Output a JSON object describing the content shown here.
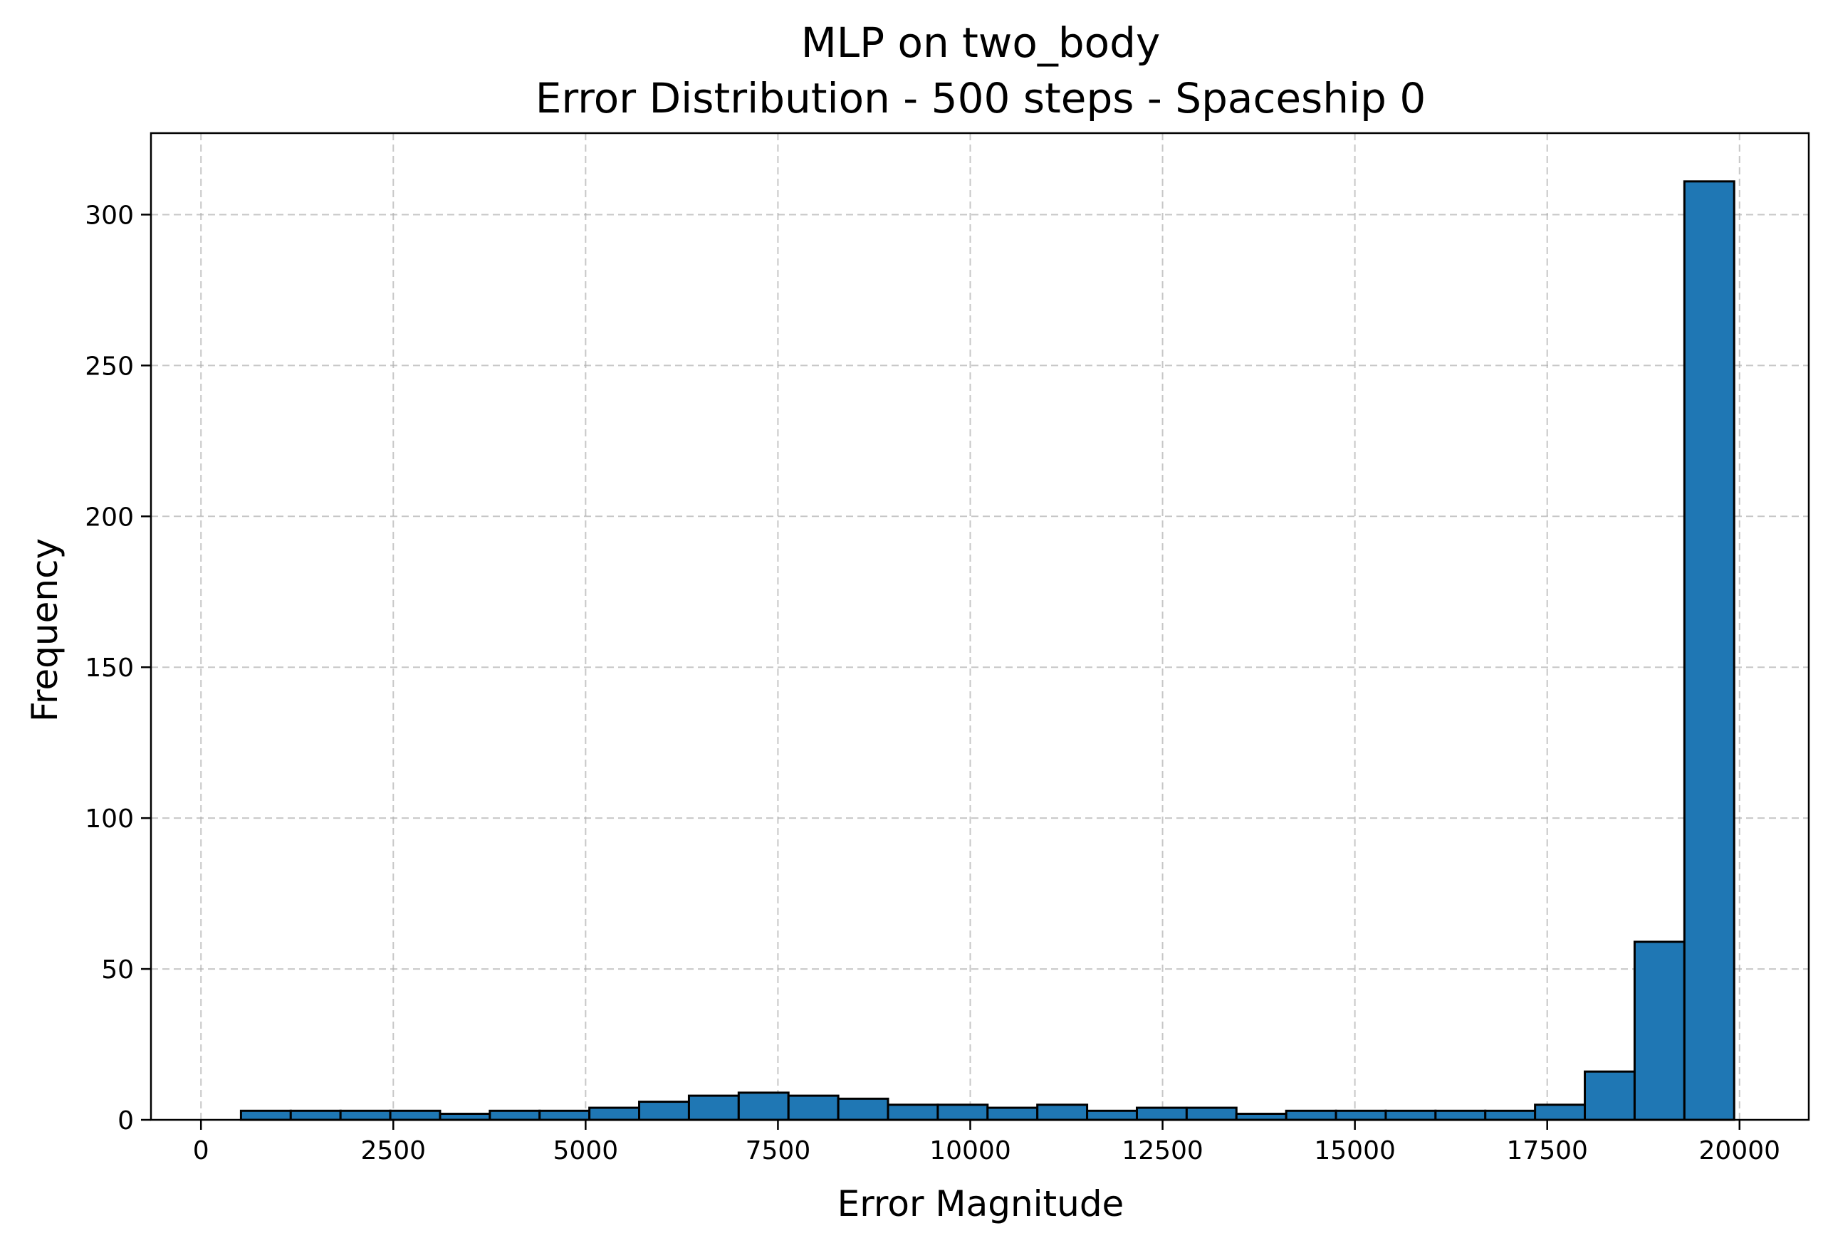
{
  "chart_data": {
    "type": "bar",
    "title": "MLP on two_body",
    "subtitle": "Error Distribution - 500 steps - Spaceship 0",
    "xlabel": "Error Magnitude",
    "ylabel": "Frequency",
    "xlim": [
      -650,
      20900
    ],
    "ylim": [
      0,
      327
    ],
    "xticks": [
      0,
      2500,
      5000,
      7500,
      10000,
      12500,
      15000,
      17500,
      20000
    ],
    "xtick_labels": [
      "0",
      "2500",
      "5000",
      "7500",
      "10000",
      "12500",
      "15000",
      "17500",
      "20000"
    ],
    "yticks": [
      0,
      50,
      100,
      150,
      200,
      250,
      300
    ],
    "ytick_labels": [
      "0",
      "50",
      "100",
      "150",
      "200",
      "250",
      "300"
    ],
    "grid": true,
    "bin_start": 520,
    "bin_end": 19930,
    "bin_count": 30,
    "values": [
      3,
      3,
      3,
      3,
      2,
      3,
      3,
      4,
      6,
      8,
      9,
      8,
      7,
      5,
      5,
      4,
      5,
      3,
      4,
      4,
      2,
      3,
      3,
      3,
      3,
      3,
      5,
      16,
      59,
      311
    ],
    "colors": {
      "bar": "#1f77b4",
      "edge": "#000000",
      "grid": "#b0b0b0"
    }
  }
}
